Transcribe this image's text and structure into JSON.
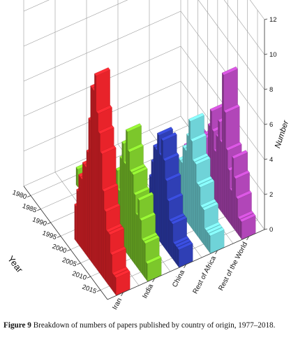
{
  "chart_data": {
    "type": "bar3d",
    "zlabel": "Number",
    "xlabel": "Year",
    "zlim": [
      0,
      12
    ],
    "z_ticks": [
      "0",
      "2",
      "4",
      "6",
      "8",
      "10",
      "12"
    ],
    "year_ticks": [
      "1980",
      "1985",
      "1990",
      "1995",
      "2000",
      "2005",
      "2010",
      "2015"
    ],
    "year_range": [
      1977,
      2018
    ],
    "grid": true,
    "series": [
      {
        "name": "Iran",
        "color": "#e8232a",
        "values": [
          0,
          0,
          0,
          0,
          0,
          0,
          0,
          0,
          0,
          0,
          0,
          0,
          0,
          0,
          0,
          0,
          0,
          0,
          0,
          0,
          0,
          2,
          3,
          4,
          4,
          5,
          5,
          6,
          8,
          10,
          10,
          11,
          9,
          8,
          7,
          5,
          4,
          3,
          3,
          2,
          1,
          1
        ]
      },
      {
        "name": "India",
        "color": "#7cc72b",
        "values": [
          0,
          0,
          0,
          0,
          0,
          0,
          1,
          0,
          0,
          0,
          0,
          0,
          0,
          0,
          0,
          0,
          0,
          0,
          0,
          0,
          0,
          0,
          0,
          1,
          2,
          3,
          4,
          3,
          5,
          6,
          5,
          7,
          6,
          5,
          5,
          4,
          3,
          4,
          3,
          2,
          2,
          1
        ]
      },
      {
        "name": "China",
        "color": "#2f3fb5",
        "values": [
          0,
          0,
          0,
          0,
          0,
          0,
          0,
          0,
          0,
          0,
          0,
          0,
          0,
          0,
          0,
          0,
          0,
          0,
          0,
          0,
          0,
          0,
          0,
          0,
          1,
          1,
          2,
          3,
          4,
          5,
          5,
          6,
          5,
          6,
          5,
          4,
          3,
          2,
          2,
          1,
          1,
          1
        ]
      },
      {
        "name": "Rest of Africa",
        "color": "#6fd3d8",
        "values": [
          0,
          0,
          0,
          0,
          0,
          0,
          0,
          0,
          0,
          0,
          0,
          0,
          0,
          0,
          0,
          0,
          2,
          0,
          0,
          0,
          0,
          0,
          0,
          1,
          2,
          2,
          3,
          3,
          4,
          4,
          5,
          6,
          5,
          4,
          4,
          3,
          3,
          2,
          2,
          1,
          1,
          1
        ]
      },
      {
        "name": "Rest of the World",
        "color": "#b146b8",
        "values": [
          0,
          0,
          0,
          0,
          0,
          0,
          0,
          0,
          0,
          0,
          0,
          0,
          0,
          1,
          0,
          0,
          2,
          0,
          1,
          1,
          2,
          1,
          3,
          3,
          2,
          4,
          5,
          4,
          3,
          4,
          5,
          4,
          8,
          6,
          4,
          3,
          2,
          4,
          3,
          2,
          1,
          1
        ]
      }
    ]
  },
  "caption": {
    "label": "Figure 9",
    "text": "Breakdown of numbers of papers published by country of origin, 1977–2018."
  }
}
